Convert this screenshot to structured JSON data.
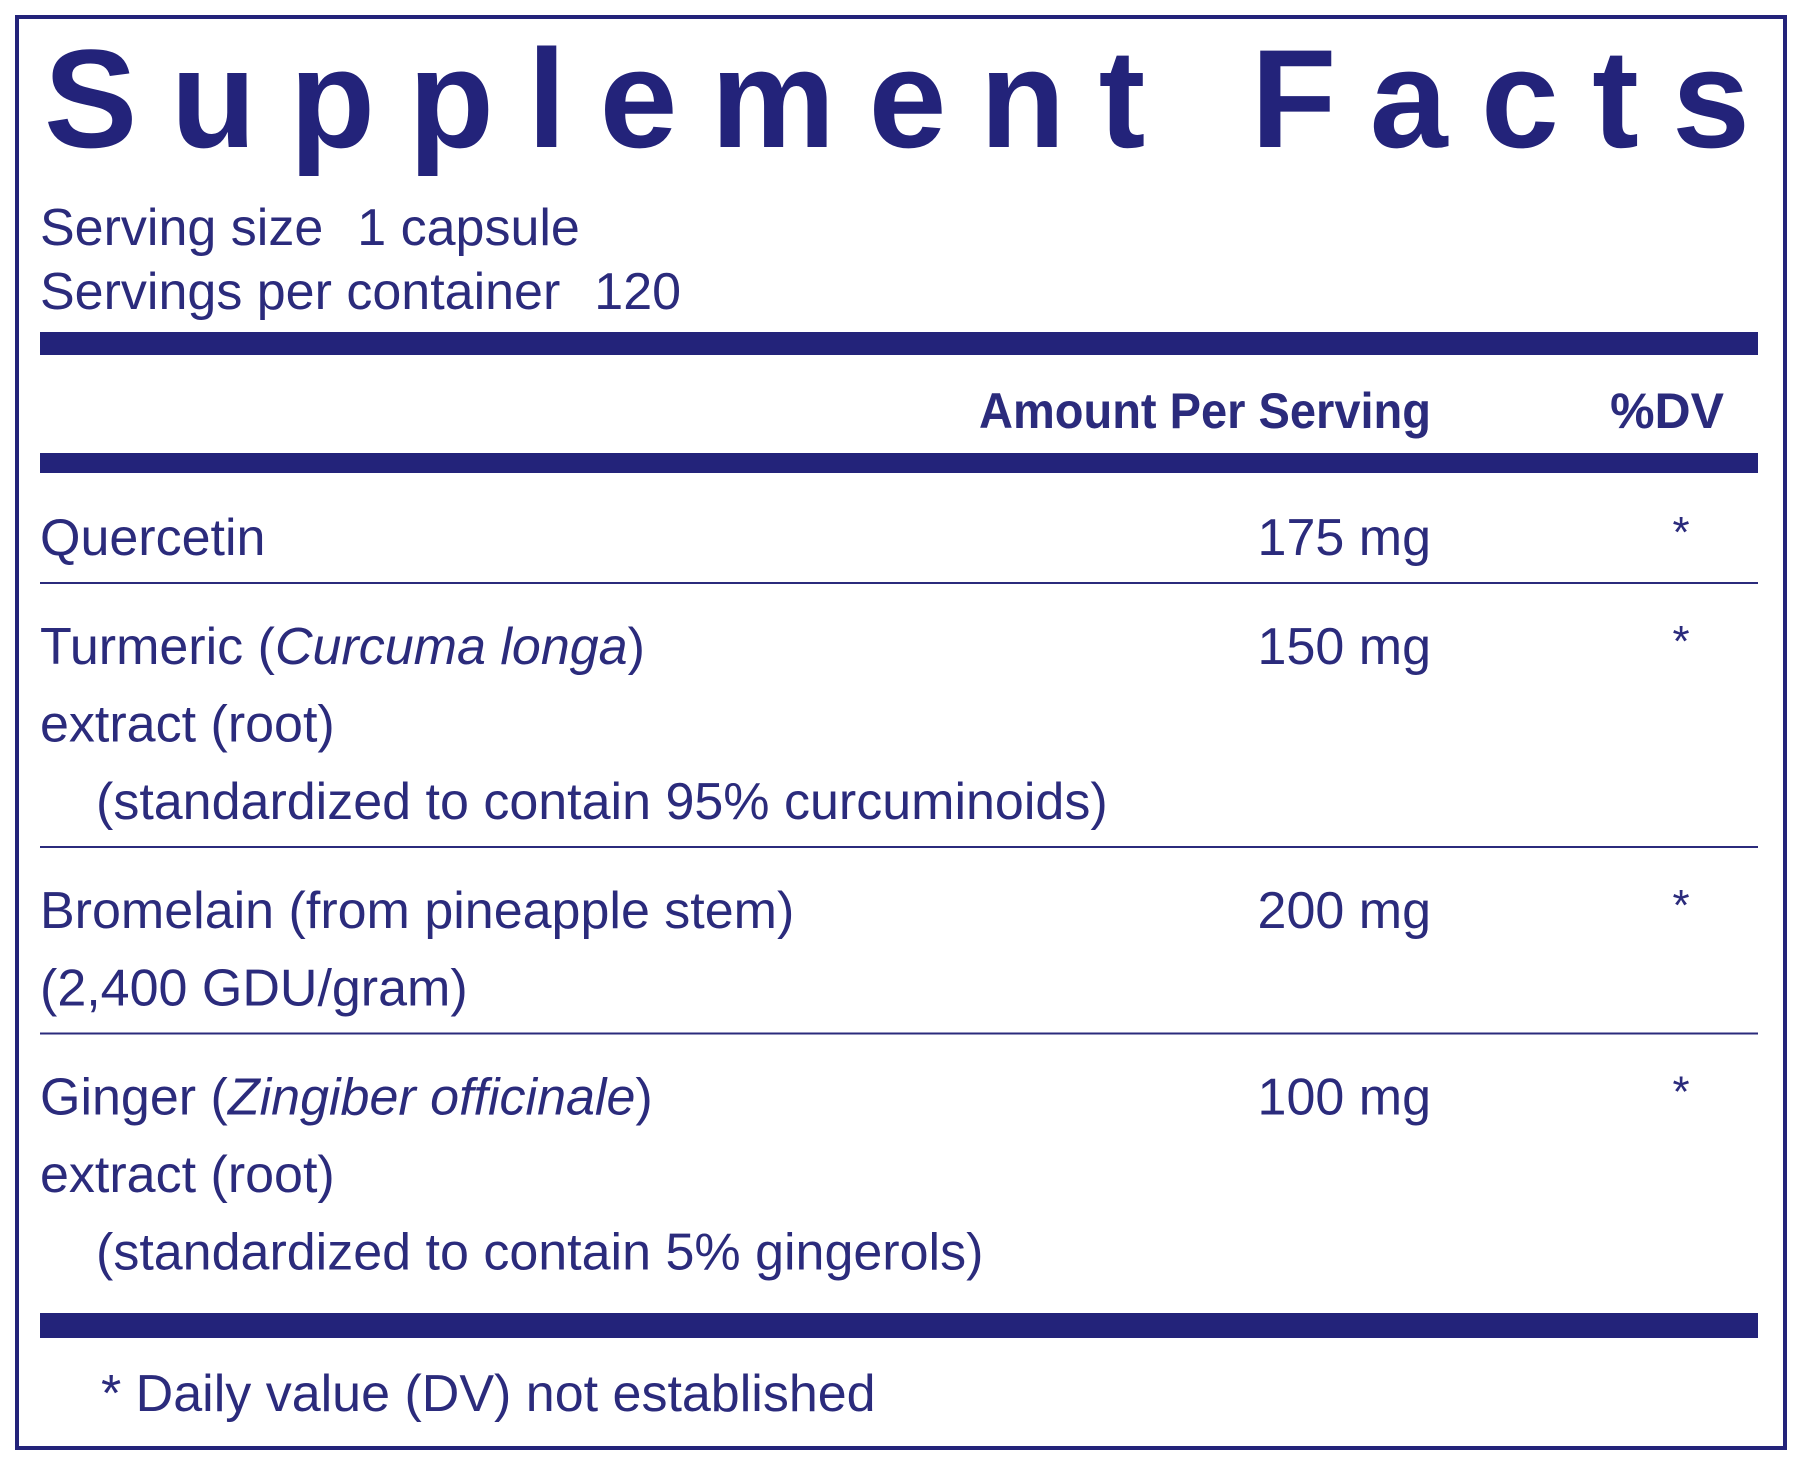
{
  "title": "Supplement Facts",
  "serving": [
    {
      "label": "Serving size",
      "value": "1 capsule"
    },
    {
      "label": "Servings per container",
      "value": "120"
    }
  ],
  "header": {
    "amount": "Amount Per Serving",
    "dv": "%DV"
  },
  "rows": [
    {
      "lines": [
        [
          {
            "text": "Quercetin"
          }
        ]
      ],
      "amount": "175 mg",
      "dv": "*"
    },
    {
      "lines": [
        [
          {
            "text": "Turmeric ("
          },
          {
            "text": "Curcuma longa",
            "italic": true
          },
          {
            "text": ")"
          }
        ],
        [
          {
            "text": "extract (root)"
          }
        ]
      ],
      "note": "(standardized to contain 95% curcuminoids)",
      "amount": "150 mg",
      "dv": "*"
    },
    {
      "lines": [
        [
          {
            "text": "Bromelain (from pineapple stem)"
          }
        ],
        [
          {
            "text": "(2,400 GDU/gram)"
          }
        ]
      ],
      "amount": "200 mg",
      "dv": "*"
    },
    {
      "lines": [
        [
          {
            "text": "Ginger ("
          },
          {
            "text": "Zingiber officinale",
            "italic": true
          },
          {
            "text": ")"
          }
        ],
        [
          {
            "text": "extract (root)"
          }
        ]
      ],
      "note": "(standardized to contain 5% gingerols)",
      "amount": "100 mg",
      "dv": "*"
    }
  ],
  "footnote": "* Daily value (DV) not established"
}
